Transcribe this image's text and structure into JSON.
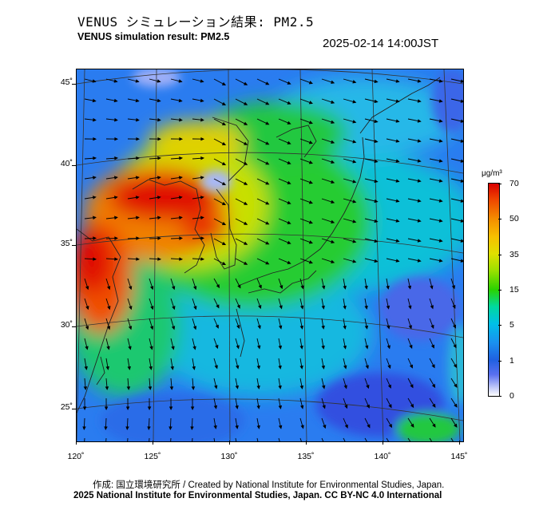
{
  "title_jp": "VENUS シミュレーション結果: PM2.5",
  "title_en": "VENUS simulation result: PM2.5",
  "timestamp": "2025-02-14 14:00JST",
  "map": {
    "lat_labels": [
      "45˚",
      "40˚",
      "35˚",
      "30˚",
      "25˚"
    ],
    "lon_labels": [
      "120˚",
      "125˚",
      "130˚",
      "135˚",
      "140˚",
      "145˚"
    ],
    "field_colors": {
      "very_high": "#e00000",
      "high": "#f07000",
      "medium_high": "#f0d000",
      "medium": "#22cc22",
      "low_medium": "#00cccc",
      "low": "#2a8cf0",
      "very_low": "#3c5ce8",
      "clean": "#a0b0f8"
    },
    "arrow_color": "#000000",
    "coastline_color": "#222222"
  },
  "colorbar": {
    "unit": "μg/m³",
    "labels": [
      "70",
      "50",
      "35",
      "15",
      "5",
      "1",
      "0"
    ]
  },
  "credit": "作成: 国立環境研究所 / Created by National Institute for Environmental Studies, Japan.",
  "license": "2025 National Institute for Environmental Studies, Japan. CC BY-NC 4.0 International"
}
